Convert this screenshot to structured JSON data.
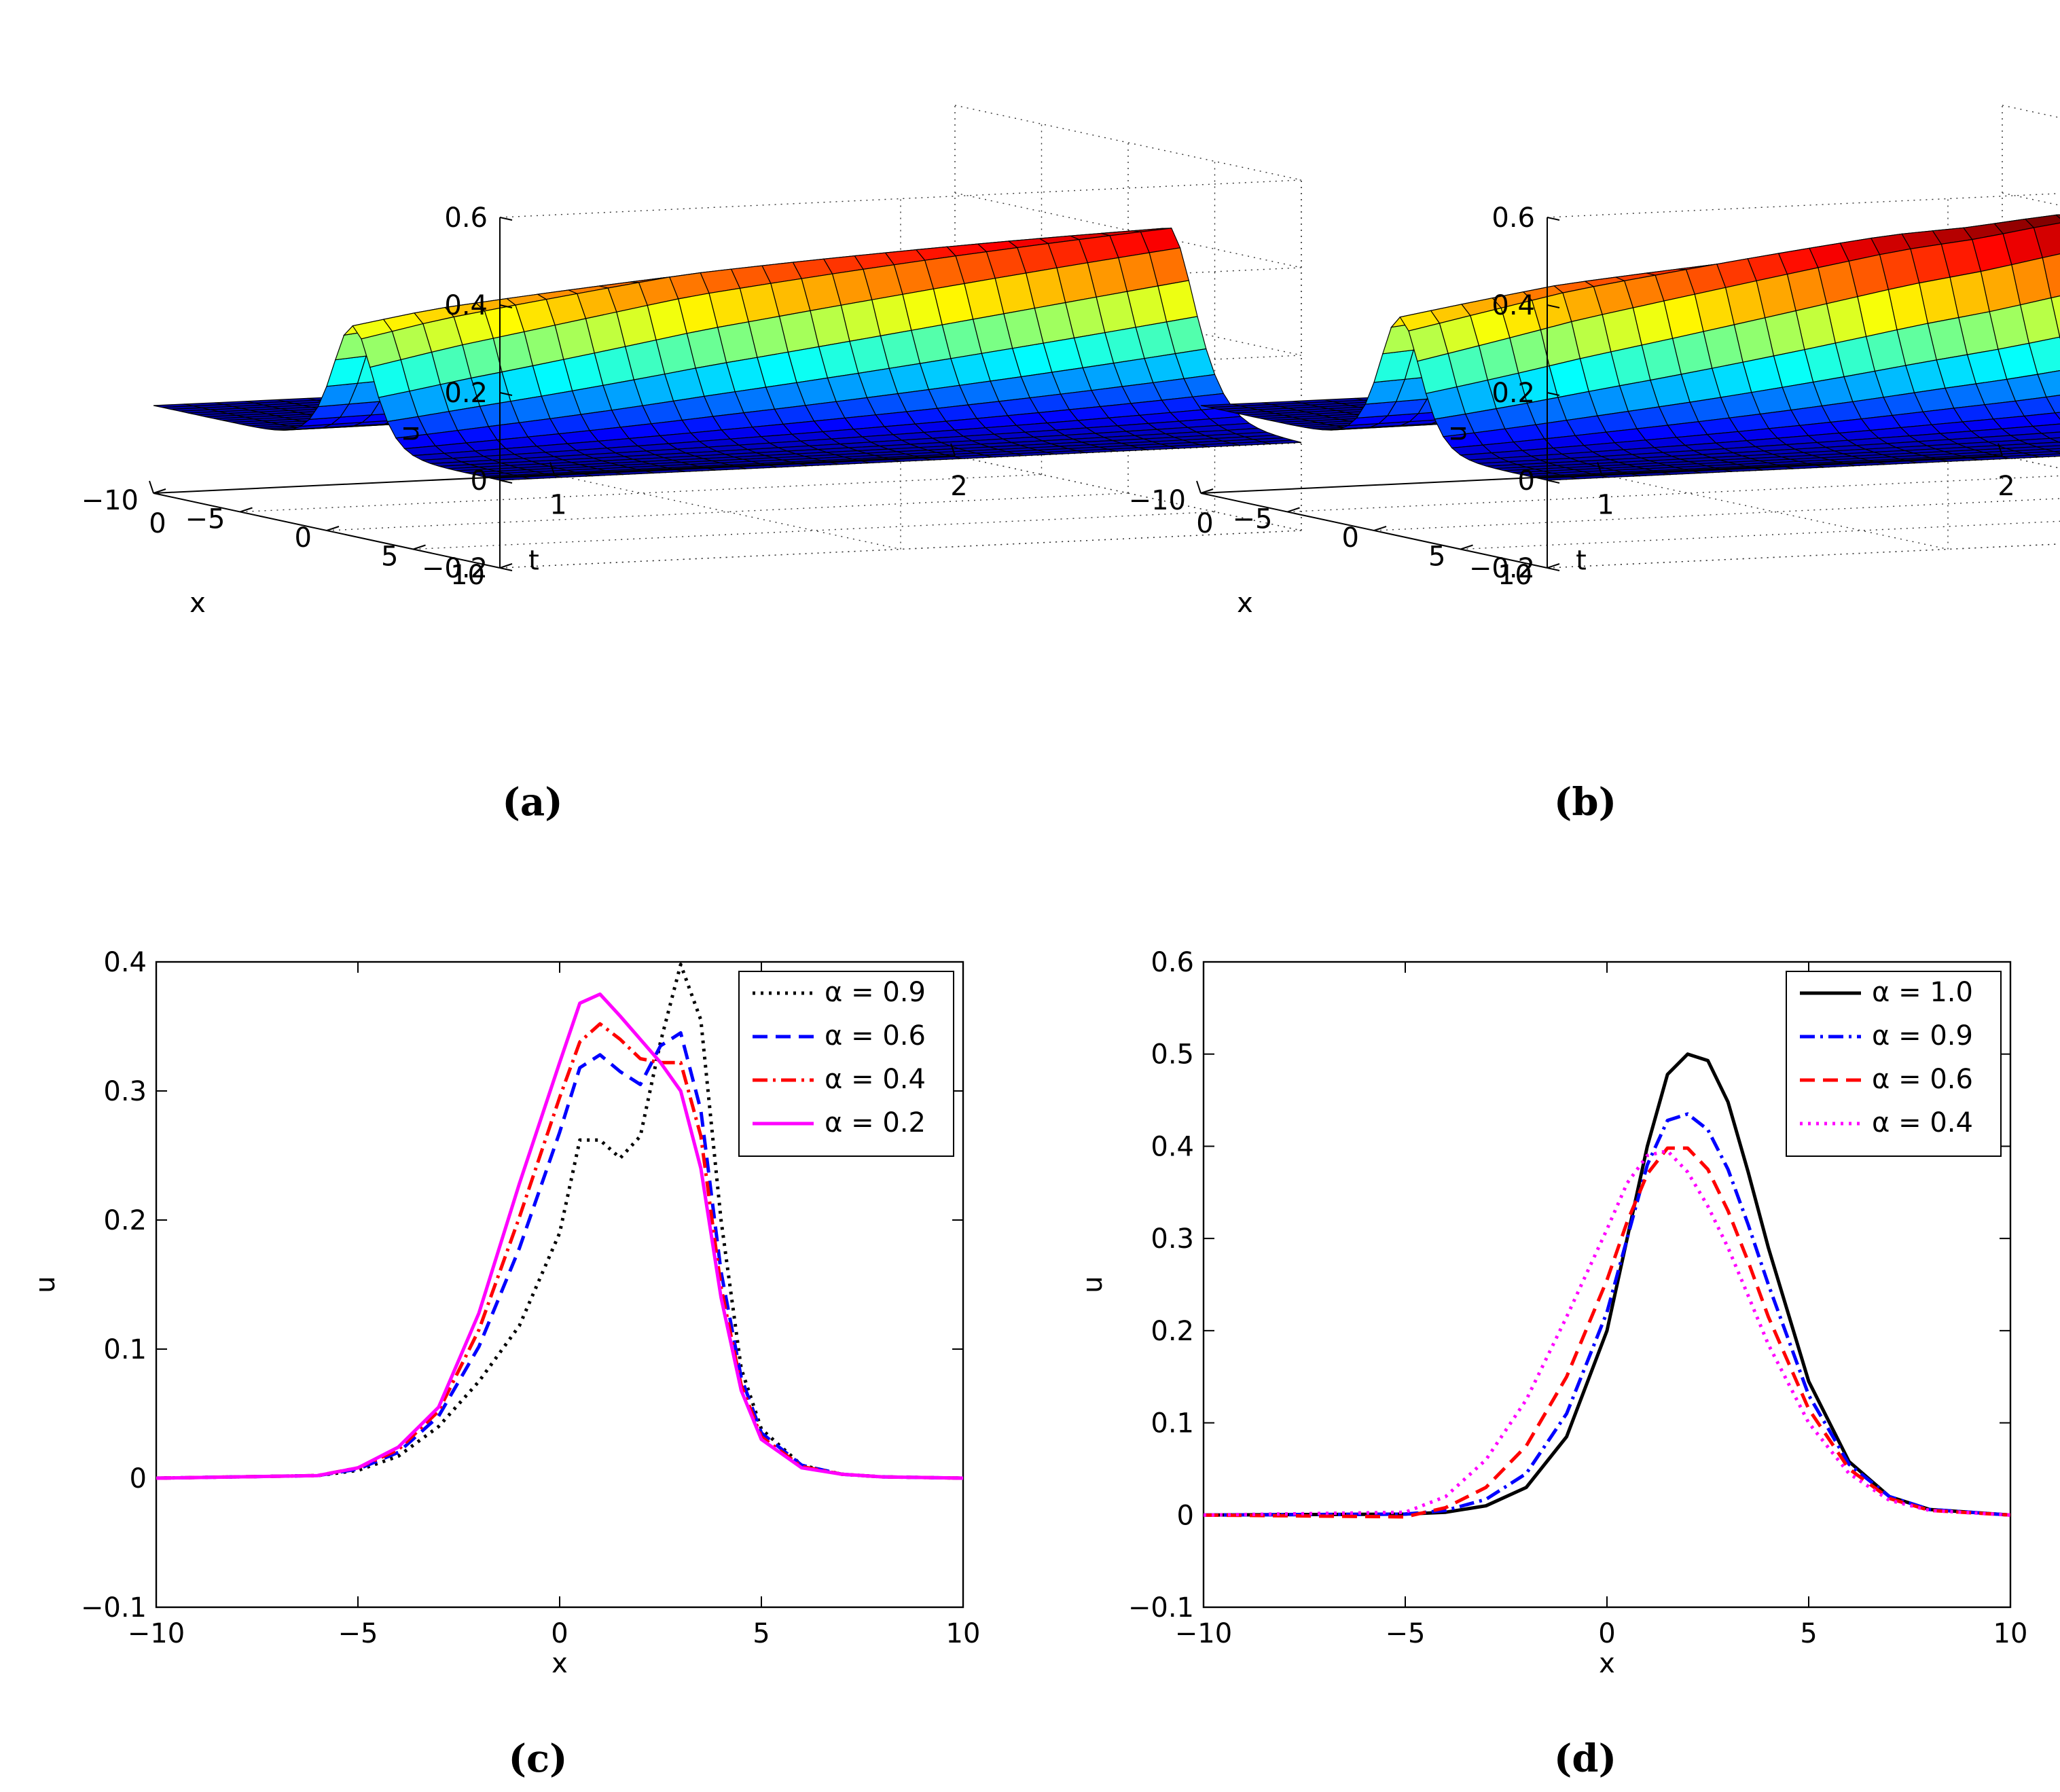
{
  "chart_data": [
    {
      "panel": "a",
      "type": "surface",
      "caption": "(a)",
      "xlabel": "x",
      "ylabel": "t",
      "zlabel": "u",
      "x_ticks": [
        "−10",
        "−5",
        "0",
        "5",
        "10"
      ],
      "t_ticks": [
        "0",
        "1",
        "2"
      ],
      "z_ticks": [
        "−0.2",
        "0",
        "0.2",
        "0.4",
        "0.6"
      ],
      "xlim": [
        -10,
        10
      ],
      "tlim": [
        0,
        2
      ],
      "zlim": [
        -0.2,
        0.6
      ],
      "grid": true,
      "colormap": "jet",
      "peak_profile_t": [
        0,
        0.2,
        0.4,
        0.6,
        0.8,
        1.0,
        1.2,
        1.4,
        1.6,
        1.8,
        2.0
      ],
      "peak_profile_u": [
        0.28,
        0.31,
        0.33,
        0.35,
        0.37,
        0.38,
        0.39,
        0.4,
        0.41,
        0.42,
        0.43
      ]
    },
    {
      "panel": "b",
      "type": "surface",
      "caption": "(b)",
      "xlabel": "x",
      "ylabel": "t",
      "zlabel": "u",
      "x_ticks": [
        "−10",
        "−5",
        "0",
        "5",
        "10"
      ],
      "t_ticks": [
        "0",
        "1",
        "2"
      ],
      "z_ticks": [
        "−0.2",
        "0",
        "0.2",
        "0.4",
        "0.6"
      ],
      "xlim": [
        -10,
        10
      ],
      "tlim": [
        0,
        2
      ],
      "zlim": [
        -0.2,
        0.6
      ],
      "grid": true,
      "colormap": "jet",
      "peak_profile_t": [
        0,
        0.2,
        0.4,
        0.6,
        0.8,
        1.0,
        1.2,
        1.4,
        1.6,
        1.8,
        2.0
      ],
      "peak_profile_u": [
        0.3,
        0.33,
        0.36,
        0.38,
        0.4,
        0.42,
        0.44,
        0.45,
        0.47,
        0.48,
        0.5
      ]
    },
    {
      "panel": "c",
      "type": "line",
      "caption": "(c)",
      "xlabel": "x",
      "ylabel": "u",
      "xlim": [
        -10,
        10
      ],
      "ylim": [
        -0.1,
        0.4
      ],
      "x_ticks": [
        -10,
        -5,
        0,
        5,
        10
      ],
      "y_ticks": [
        -0.1,
        0,
        0.1,
        0.2,
        0.3,
        0.4
      ],
      "x_tick_labels": [
        "−10",
        "−5",
        "0",
        "5",
        "10"
      ],
      "y_tick_labels": [
        "−0.1",
        "0",
        "0.1",
        "0.2",
        "0.3",
        "0.4"
      ],
      "legend_position": "top-right",
      "series": [
        {
          "name": "α = 0.9",
          "color": "#000000",
          "style": "dotted",
          "x": [
            -10,
            -6,
            -5,
            -4,
            -3,
            -2,
            -1,
            0,
            0.5,
            1,
            1.5,
            2,
            2.5,
            3,
            3.5,
            4,
            4.5,
            5,
            6,
            7,
            8,
            10
          ],
          "y": [
            0,
            0.002,
            0.006,
            0.017,
            0.04,
            0.075,
            0.118,
            0.19,
            0.262,
            0.262,
            0.248,
            0.265,
            0.338,
            0.398,
            0.355,
            0.2,
            0.085,
            0.038,
            0.01,
            0.003,
            0.001,
            0
          ]
        },
        {
          "name": "α = 0.6",
          "color": "#0000ff",
          "style": "dashed",
          "x": [
            -10,
            -6,
            -5,
            -4,
            -3,
            -2,
            -1,
            0,
            0.5,
            1,
            1.5,
            2,
            2.5,
            3,
            3.5,
            4,
            4.5,
            5,
            6,
            7,
            8,
            10
          ],
          "y": [
            0,
            0.002,
            0.007,
            0.02,
            0.048,
            0.102,
            0.178,
            0.268,
            0.318,
            0.328,
            0.315,
            0.305,
            0.335,
            0.345,
            0.285,
            0.16,
            0.078,
            0.035,
            0.01,
            0.003,
            0.001,
            0
          ]
        },
        {
          "name": "α = 0.4",
          "color": "#ff0000",
          "style": "dashdot",
          "x": [
            -10,
            -6,
            -5,
            -4,
            -3,
            -2,
            -1,
            0,
            0.5,
            1,
            1.5,
            2,
            2.5,
            3,
            3.5,
            4,
            4.5,
            5,
            6,
            7,
            8,
            10
          ],
          "y": [
            0,
            0.002,
            0.008,
            0.022,
            0.052,
            0.115,
            0.202,
            0.295,
            0.338,
            0.352,
            0.34,
            0.325,
            0.322,
            0.322,
            0.265,
            0.148,
            0.072,
            0.032,
            0.009,
            0.003,
            0.001,
            0
          ]
        },
        {
          "name": "α = 0.2",
          "color": "#ff00ff",
          "style": "solid",
          "x": [
            -10,
            -6,
            -5,
            -4,
            -3,
            -2,
            -1,
            0,
            0.5,
            1,
            1.5,
            2,
            2.5,
            3,
            3.5,
            4,
            4.5,
            5,
            6,
            7,
            8,
            10
          ],
          "y": [
            0,
            0.002,
            0.008,
            0.024,
            0.055,
            0.128,
            0.228,
            0.322,
            0.368,
            0.375,
            0.358,
            0.34,
            0.322,
            0.3,
            0.24,
            0.14,
            0.068,
            0.03,
            0.008,
            0.003,
            0.001,
            0
          ]
        }
      ]
    },
    {
      "panel": "d",
      "type": "line",
      "caption": "(d)",
      "xlabel": "x",
      "ylabel": "u",
      "xlim": [
        -10,
        10
      ],
      "ylim": [
        -0.1,
        0.6
      ],
      "x_ticks": [
        -10,
        -5,
        0,
        5,
        10
      ],
      "y_ticks": [
        -0.1,
        0,
        0.1,
        0.2,
        0.3,
        0.4,
        0.5,
        0.6
      ],
      "x_tick_labels": [
        "−10",
        "−5",
        "0",
        "5",
        "10"
      ],
      "y_tick_labels": [
        "−0.1",
        "0",
        "0.1",
        "0.2",
        "0.3",
        "0.4",
        "0.5",
        "0.6"
      ],
      "legend_position": "top-right",
      "series": [
        {
          "name": "α = 1.0",
          "color": "#000000",
          "style": "solid",
          "x": [
            -10,
            -5,
            -4,
            -3,
            -2,
            -1,
            0,
            0.5,
            1,
            1.5,
            2,
            2.5,
            3,
            3.5,
            4,
            5,
            6,
            7,
            8,
            10
          ],
          "y": [
            0,
            0.001,
            0.003,
            0.01,
            0.03,
            0.085,
            0.2,
            0.3,
            0.4,
            0.478,
            0.5,
            0.493,
            0.448,
            0.372,
            0.29,
            0.145,
            0.058,
            0.02,
            0.006,
            0
          ]
        },
        {
          "name": "α = 0.9",
          "color": "#0000ff",
          "style": "dashdot",
          "x": [
            -10,
            -5,
            -4,
            -3,
            -2,
            -1,
            0,
            0.5,
            1,
            1.5,
            2,
            2.5,
            3,
            3.5,
            4,
            5,
            6,
            7,
            8,
            10
          ],
          "y": [
            0,
            0.001,
            0.005,
            0.017,
            0.045,
            0.11,
            0.22,
            0.3,
            0.38,
            0.428,
            0.435,
            0.418,
            0.375,
            0.315,
            0.25,
            0.13,
            0.055,
            0.02,
            0.006,
            0
          ]
        },
        {
          "name": "α = 0.6",
          "color": "#ff0000",
          "style": "dashed",
          "x": [
            -10,
            -5,
            -4,
            -3,
            -2,
            -1,
            0,
            0.5,
            1,
            1.5,
            2,
            2.5,
            3,
            3.5,
            4,
            5,
            6,
            7,
            8,
            10
          ],
          "y": [
            0,
            -0.002,
            0.008,
            0.03,
            0.075,
            0.15,
            0.255,
            0.318,
            0.37,
            0.398,
            0.398,
            0.375,
            0.33,
            0.275,
            0.215,
            0.115,
            0.05,
            0.018,
            0.005,
            0
          ]
        },
        {
          "name": "α = 0.4",
          "color": "#ff00ff",
          "style": "dotted",
          "x": [
            -10,
            -5,
            -4,
            -3,
            -2,
            -1,
            0,
            0.5,
            1,
            1.5,
            2,
            2.5,
            3,
            3.5,
            4,
            5,
            6,
            7,
            8,
            10
          ],
          "y": [
            0,
            0.003,
            0.02,
            0.06,
            0.125,
            0.215,
            0.31,
            0.36,
            0.39,
            0.395,
            0.372,
            0.335,
            0.29,
            0.238,
            0.185,
            0.1,
            0.045,
            0.016,
            0.005,
            0
          ]
        }
      ]
    }
  ]
}
